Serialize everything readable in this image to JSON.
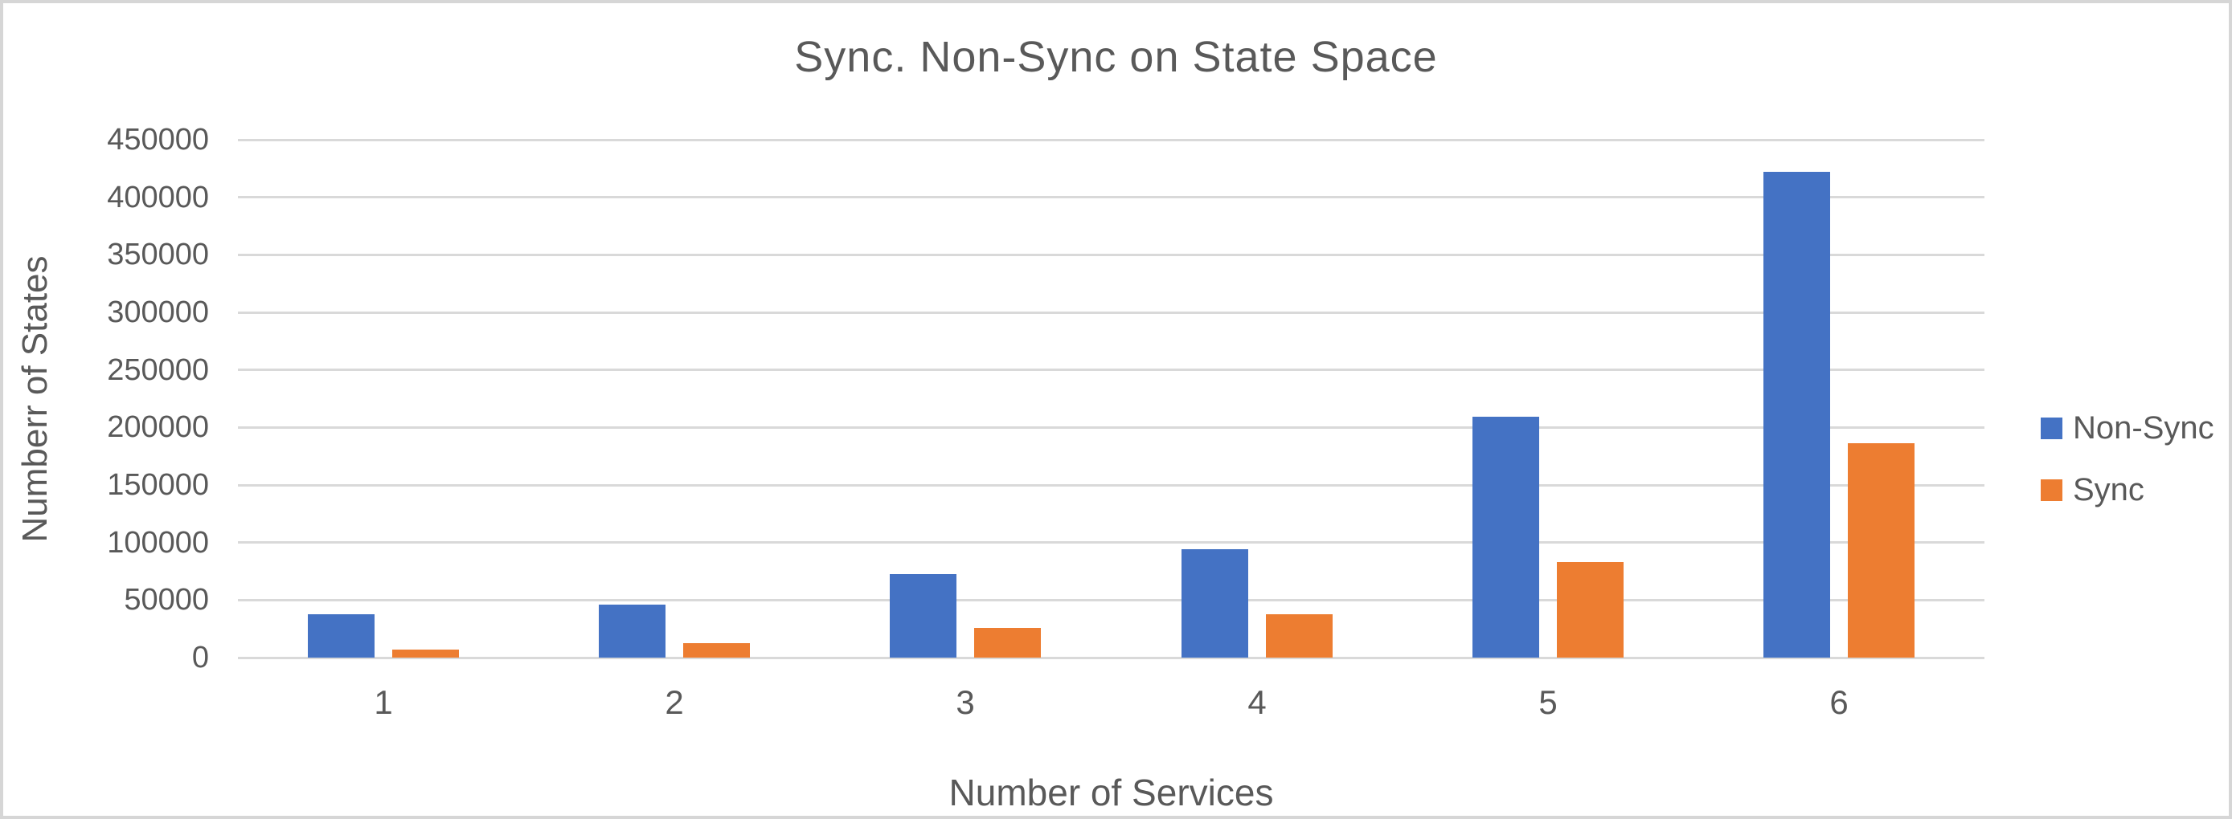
{
  "window": {
    "background": "#ffffff",
    "border_color": "#d6d6d6"
  },
  "chart_data": {
    "type": "bar",
    "title": "Sync. Non-Sync on State Space",
    "xlabel": "Number of Services",
    "ylabel": "Numberr of States",
    "categories": [
      "1",
      "2",
      "3",
      "4",
      "5",
      "6"
    ],
    "series": [
      {
        "name": "Non-Sync",
        "color": "#4472c4",
        "values": [
          37500,
          46000,
          72500,
          94000,
          209000,
          422000
        ]
      },
      {
        "name": "Sync",
        "color": "#ed7d31",
        "values": [
          7000,
          12500,
          25500,
          38000,
          83000,
          186000
        ]
      }
    ],
    "ylim": [
      0,
      450000
    ],
    "ytick_step": 50000,
    "ytick_labels": [
      "0",
      "50000",
      "100000",
      "150000",
      "200000",
      "250000",
      "300000",
      "350000",
      "400000",
      "450000"
    ],
    "grid": true,
    "legend_position": "right",
    "text_color": "#595959",
    "gridline_color": "#d9d9d9",
    "axis_line_color": "#d9d9d9"
  }
}
